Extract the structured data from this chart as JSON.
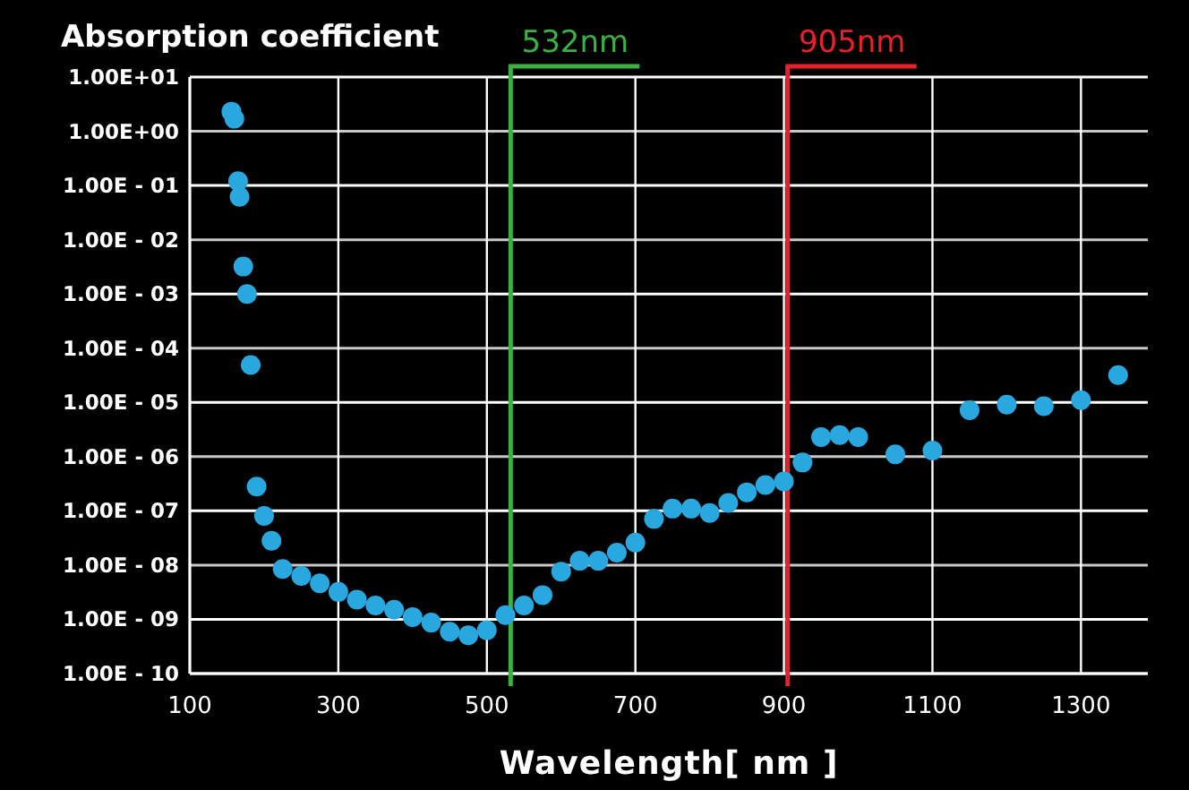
{
  "chart_data": {
    "type": "scatter",
    "ylabel": "Absorption coefficient",
    "xlabel": "Wavelength[ nm ]",
    "x": [
      156,
      160,
      165,
      167,
      172,
      177,
      182,
      190,
      200,
      210,
      225,
      250,
      275,
      300,
      325,
      350,
      375,
      400,
      425,
      450,
      475,
      500,
      525,
      550,
      575,
      600,
      625,
      650,
      675,
      700,
      725,
      750,
      775,
      800,
      825,
      850,
      875,
      900,
      925,
      950,
      975,
      1000,
      1050,
      1100,
      1150,
      1200,
      1250,
      1300,
      1350
    ],
    "series": [
      {
        "color": "#29a8e0",
        "values": [
          2.3,
          1.7,
          0.12,
          0.062,
          0.0032,
          0.001,
          4.9e-05,
          2.8e-07,
          8.1e-08,
          2.8e-08,
          8.5e-09,
          6.3e-09,
          4.6e-09,
          3.2e-09,
          2.3e-09,
          1.8e-09,
          1.5e-09,
          1.1e-09,
          8.7e-10,
          5.9e-10,
          5.1e-10,
          6.3e-10,
          1.2e-09,
          1.8e-09,
          2.8e-09,
          7.6e-09,
          1.2e-08,
          1.2e-08,
          1.7e-08,
          2.6e-08,
          7.1e-08,
          1.1e-07,
          1.1e-07,
          9.1e-08,
          1.4e-07,
          2.2e-07,
          3e-07,
          3.5e-07,
          7.8e-07,
          2.3e-06,
          2.5e-06,
          2.3e-06,
          1.1e-06,
          1.3e-06,
          7.2e-06,
          9.1e-06,
          8.5e-06,
          1.1e-05,
          3.2e-05
        ]
      }
    ],
    "xlim": [
      100,
      1390
    ],
    "xticks": [
      100,
      300,
      500,
      700,
      900,
      1100,
      1300
    ],
    "ylim": [
      1e-10,
      10
    ],
    "log": true,
    "yticks": [
      {
        "value": 10,
        "label": "1.00E+01"
      },
      {
        "value": 1,
        "label": "1.00E+00"
      },
      {
        "value": 0.1,
        "label": "1.00E - 01"
      },
      {
        "value": 0.01,
        "label": "1.00E - 02"
      },
      {
        "value": 0.001,
        "label": "1.00E - 03"
      },
      {
        "value": 0.0001,
        "label": "1.00E - 04"
      },
      {
        "value": 1e-05,
        "label": "1.00E - 05"
      },
      {
        "value": 1e-06,
        "label": "1.00E - 06"
      },
      {
        "value": 1e-07,
        "label": "1.00E - 07"
      },
      {
        "value": 1e-08,
        "label": "1.00E - 08"
      },
      {
        "value": 1e-09,
        "label": "1.00E - 09"
      },
      {
        "value": 1e-10,
        "label": "1.00E - 10"
      }
    ],
    "grid": true,
    "marker": "circle",
    "ref_lines": [
      {
        "axis": "x",
        "value": 532,
        "label": "532nm",
        "color": "#3cb043"
      },
      {
        "axis": "x",
        "value": 905,
        "label": "905nm",
        "color": "#e8202a"
      }
    ]
  }
}
